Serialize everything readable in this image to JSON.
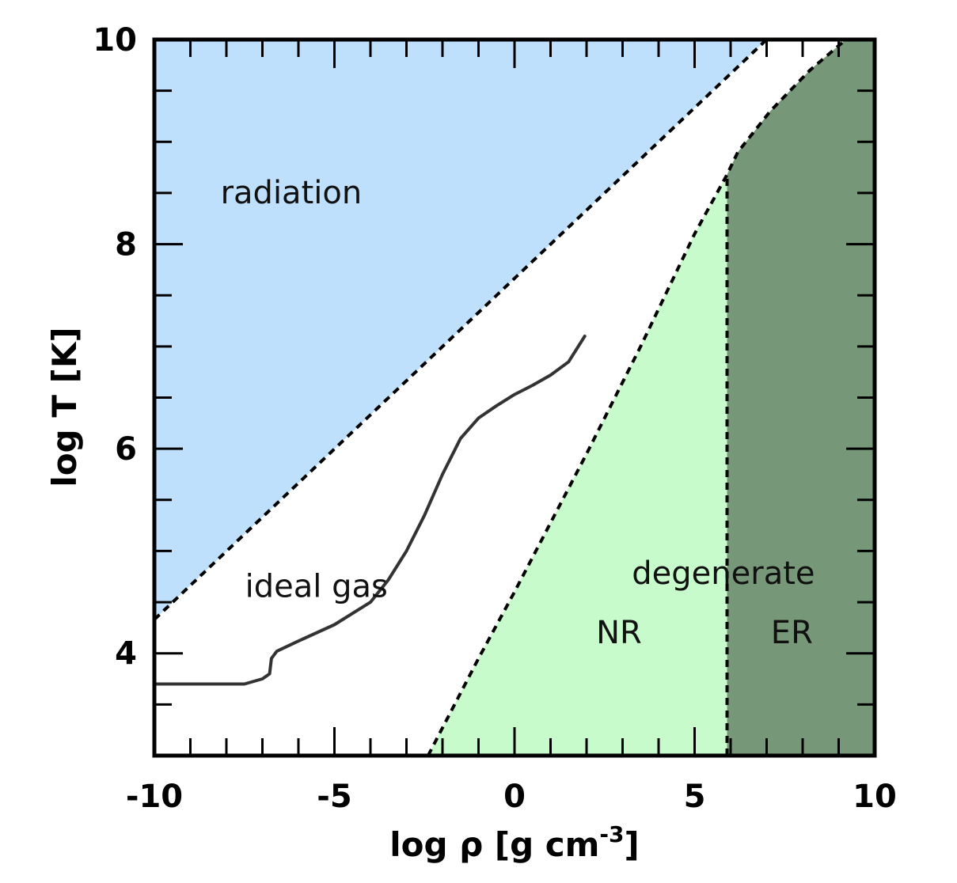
{
  "chart_data": {
    "type": "area",
    "title": "",
    "xlabel": "log ρ [g cm",
    "xlabel_superscript": "-3",
    "xlabel_suffix": "]",
    "ylabel": "log T [K]",
    "xlim": [
      -10,
      10
    ],
    "ylim": [
      3,
      10
    ],
    "x_ticks": [
      -10,
      -5,
      0,
      5,
      10
    ],
    "x_tick_labels": [
      "-10",
      "-5",
      "0",
      "5",
      "10"
    ],
    "y_ticks": [
      4,
      6,
      8,
      10
    ],
    "y_tick_labels": [
      "4",
      "6",
      "8",
      "10"
    ],
    "x_minor_step": 1,
    "y_minor_step": 0.5,
    "grid": false,
    "regions": [
      {
        "label": "radiation",
        "color": "#bfe0fc",
        "label_pos": [
          -6.2,
          8.4
        ]
      },
      {
        "label": "ideal gas",
        "color": "#ffffff",
        "label_pos": [
          -5.5,
          4.55
        ]
      },
      {
        "label": "degenerate",
        "color": "#c8fbcc",
        "label_pos": [
          5.8,
          4.68
        ]
      },
      {
        "label": "NR",
        "color": "#c8fbcc",
        "label_pos": [
          2.9,
          4.1
        ]
      },
      {
        "label": "ER",
        "color": "#779878",
        "label_pos": [
          7.7,
          4.1
        ]
      }
    ],
    "boundaries": {
      "radiation_line": [
        [
          -10,
          4.33
        ],
        [
          7.0,
          10.0
        ]
      ],
      "degeneracy_line": [
        [
          -2.4,
          3.0
        ],
        [
          -1.0,
          3.95
        ],
        [
          0.0,
          4.6
        ],
        [
          2.0,
          5.95
        ],
        [
          3.5,
          7.0
        ],
        [
          5.0,
          8.1
        ],
        [
          5.9,
          8.68
        ],
        [
          6.2,
          8.9
        ],
        [
          7.1,
          9.3
        ],
        [
          8.2,
          9.7
        ],
        [
          9.2,
          10.0
        ]
      ],
      "relativistic_line": [
        [
          5.9,
          3.0
        ],
        [
          5.9,
          8.68
        ]
      ]
    },
    "series": [
      {
        "values": [
          [
            -10,
            3.7
          ],
          [
            -8.5,
            3.7
          ],
          [
            -7.5,
            3.7
          ],
          [
            -7.0,
            3.75
          ],
          [
            -6.8,
            3.8
          ],
          [
            -6.75,
            3.95
          ],
          [
            -6.6,
            4.02
          ],
          [
            -6.0,
            4.12
          ],
          [
            -5.0,
            4.28
          ],
          [
            -4.0,
            4.5
          ],
          [
            -3.5,
            4.72
          ],
          [
            -3.0,
            5.0
          ],
          [
            -2.5,
            5.35
          ],
          [
            -2.0,
            5.75
          ],
          [
            -1.5,
            6.1
          ],
          [
            -1.0,
            6.3
          ],
          [
            -0.5,
            6.42
          ],
          [
            0.0,
            6.53
          ],
          [
            0.5,
            6.62
          ],
          [
            1.0,
            6.72
          ],
          [
            1.5,
            6.85
          ],
          [
            1.95,
            7.1
          ]
        ],
        "color": "#333333"
      }
    ]
  }
}
